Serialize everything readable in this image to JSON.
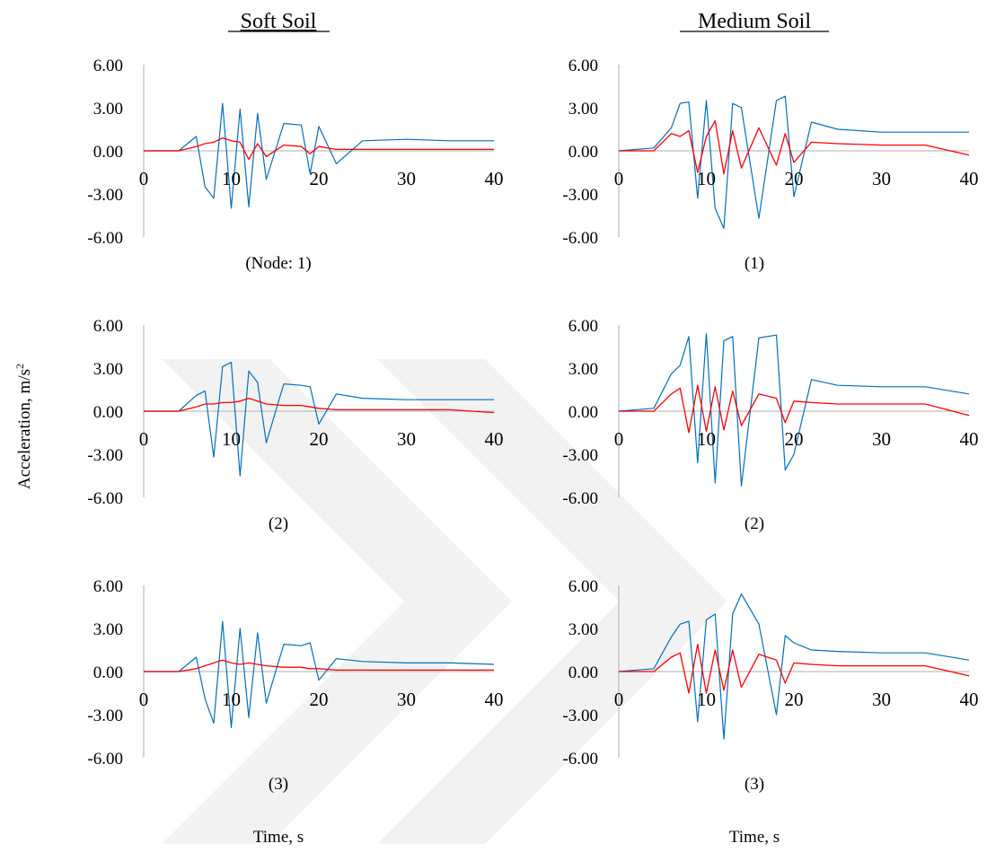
{
  "figure": {
    "y_axis_label": "Acceleration, m/s",
    "y_axis_label_superscript": "2",
    "columns": [
      {
        "heading": "Soft Soil",
        "x_axis_label": "Time, s"
      },
      {
        "heading": "Medium Soil",
        "x_axis_label": "Time, s"
      }
    ],
    "colors": {
      "blue_series": "#0070C0",
      "red_series": "#FF0000",
      "axis": "#BFBFBF",
      "watermark": "#F1F1F1"
    }
  },
  "chart_data": [
    {
      "type": "line",
      "column": "Soft Soil",
      "caption": "(Node: 1)",
      "xlim": [
        0,
        40
      ],
      "ylim": [
        -6,
        6
      ],
      "x_ticks": [
        "0",
        "10",
        "20",
        "30",
        "40"
      ],
      "y_ticks": [
        "6.00",
        "3.00",
        "0.00",
        "-3.00",
        "-6.00"
      ],
      "x": [
        0,
        4,
        6,
        7,
        8,
        9,
        10,
        11,
        12,
        13,
        14,
        16,
        18,
        19,
        20,
        22,
        25,
        30,
        35,
        40
      ],
      "series": [
        {
          "values": [
            0,
            0,
            1.0,
            -2.5,
            -3.3,
            3.3,
            -4.0,
            2.9,
            -3.9,
            2.6,
            -2.0,
            1.9,
            1.8,
            -1.6,
            1.7,
            -0.9,
            0.7,
            0.8,
            0.7,
            0.7
          ]
        },
        {
          "values": [
            0,
            0,
            0.3,
            0.5,
            0.6,
            0.9,
            0.7,
            0.6,
            -0.6,
            0.5,
            -0.4,
            0.4,
            0.3,
            -0.2,
            0.3,
            0.1,
            0.1,
            0.1,
            0.1,
            0.1
          ]
        }
      ]
    },
    {
      "type": "line",
      "column": "Medium Soil",
      "caption": "(1)",
      "xlim": [
        0,
        40
      ],
      "ylim": [
        -6,
        6
      ],
      "x_ticks": [
        "0",
        "10",
        "20",
        "30",
        "40"
      ],
      "y_ticks": [
        "6.00",
        "3.00",
        "0.00",
        "-3.00",
        "-6.00"
      ],
      "x": [
        0,
        4,
        6,
        7,
        8,
        9,
        10,
        11,
        12,
        13,
        14,
        16,
        18,
        19,
        20,
        22,
        25,
        30,
        35,
        40
      ],
      "series": [
        {
          "values": [
            0,
            0.2,
            1.6,
            3.3,
            3.4,
            -3.3,
            3.5,
            -4.0,
            -5.4,
            3.3,
            3.0,
            -4.7,
            3.5,
            3.8,
            -3.2,
            2.0,
            1.5,
            1.3,
            1.3,
            1.3
          ]
        },
        {
          "values": [
            0,
            0,
            1.2,
            1.0,
            1.4,
            -1.5,
            1.0,
            2.1,
            -1.6,
            1.4,
            -1.2,
            1.6,
            -1.0,
            1.2,
            -0.8,
            0.6,
            0.5,
            0.4,
            0.4,
            -0.3
          ]
        }
      ]
    },
    {
      "type": "line",
      "column": "Soft Soil",
      "caption": "(2)",
      "xlim": [
        0,
        40
      ],
      "ylim": [
        -6,
        6
      ],
      "x_ticks": [
        "0",
        "10",
        "20",
        "30",
        "40"
      ],
      "y_ticks": [
        "6.00",
        "3.00",
        "0.00",
        "-3.00",
        "-6.00"
      ],
      "x": [
        0,
        4,
        6,
        7,
        8,
        9,
        10,
        11,
        12,
        13,
        14,
        16,
        18,
        19,
        20,
        22,
        25,
        30,
        35,
        40
      ],
      "series": [
        {
          "values": [
            0,
            0,
            1.1,
            1.4,
            -3.2,
            3.1,
            3.4,
            -4.5,
            2.8,
            2.0,
            -2.2,
            1.9,
            1.8,
            1.7,
            -0.9,
            1.2,
            0.9,
            0.8,
            0.8,
            0.8
          ]
        },
        {
          "values": [
            0,
            0,
            0.3,
            0.5,
            0.5,
            0.6,
            0.6,
            0.7,
            0.9,
            0.7,
            0.5,
            0.4,
            0.4,
            0.3,
            0.2,
            0.1,
            0.1,
            0.1,
            0.1,
            -0.1
          ]
        }
      ]
    },
    {
      "type": "line",
      "column": "Medium Soil",
      "caption": "(2)",
      "xlim": [
        0,
        40
      ],
      "ylim": [
        -6,
        6
      ],
      "x_ticks": [
        "0",
        "10",
        "20",
        "30",
        "40"
      ],
      "y_ticks": [
        "6.00",
        "3.00",
        "0.00",
        "-3.00",
        "-6.00"
      ],
      "x": [
        0,
        4,
        6,
        7,
        8,
        9,
        10,
        11,
        12,
        13,
        14,
        16,
        18,
        19,
        20,
        22,
        25,
        30,
        35,
        40
      ],
      "series": [
        {
          "values": [
            0,
            0.2,
            2.6,
            3.2,
            5.2,
            -3.6,
            5.4,
            -5.0,
            4.9,
            5.2,
            -5.2,
            5.1,
            5.3,
            -4.1,
            -3.0,
            2.2,
            1.8,
            1.7,
            1.7,
            1.2
          ]
        },
        {
          "values": [
            0,
            0,
            1.2,
            1.6,
            -1.5,
            1.8,
            -1.4,
            1.7,
            -1.3,
            1.4,
            -1.0,
            1.2,
            0.9,
            -0.8,
            0.7,
            0.6,
            0.5,
            0.5,
            0.5,
            -0.3
          ]
        }
      ]
    },
    {
      "type": "line",
      "column": "Soft Soil",
      "caption": "(3)",
      "xlim": [
        0,
        40
      ],
      "ylim": [
        -6,
        6
      ],
      "x_ticks": [
        "0",
        "10",
        "20",
        "30",
        "40"
      ],
      "y_ticks": [
        "6.00",
        "3.00",
        "0.00",
        "-3.00",
        "-6.00"
      ],
      "x": [
        0,
        4,
        6,
        7,
        8,
        9,
        10,
        11,
        12,
        13,
        14,
        16,
        18,
        19,
        20,
        22,
        25,
        30,
        35,
        40
      ],
      "series": [
        {
          "values": [
            0,
            0,
            1.0,
            -1.9,
            -3.6,
            3.5,
            -3.9,
            3.0,
            -3.2,
            2.7,
            -2.2,
            1.9,
            1.8,
            2.0,
            -0.6,
            0.9,
            0.7,
            0.6,
            0.6,
            0.5
          ]
        },
        {
          "values": [
            0,
            0,
            0.2,
            0.4,
            0.6,
            0.8,
            0.6,
            0.5,
            0.6,
            0.5,
            0.4,
            0.3,
            0.3,
            0.2,
            0.2,
            0.1,
            0.1,
            0.1,
            0.1,
            0.1
          ]
        }
      ]
    },
    {
      "type": "line",
      "column": "Medium Soil",
      "caption": "(3)",
      "xlim": [
        0,
        40
      ],
      "ylim": [
        -6,
        6
      ],
      "x_ticks": [
        "0",
        "10",
        "20",
        "30",
        "40"
      ],
      "y_ticks": [
        "6.00",
        "3.00",
        "0.00",
        "-3.00",
        "-6.00"
      ],
      "x": [
        0,
        4,
        6,
        7,
        8,
        9,
        10,
        11,
        12,
        13,
        14,
        16,
        18,
        19,
        20,
        22,
        25,
        30,
        35,
        40
      ],
      "series": [
        {
          "values": [
            0,
            0.2,
            2.4,
            3.3,
            3.5,
            -3.5,
            3.6,
            4.0,
            -4.7,
            4.0,
            5.4,
            3.3,
            -3.0,
            2.5,
            2.0,
            1.5,
            1.4,
            1.3,
            1.3,
            0.8
          ]
        },
        {
          "values": [
            0,
            0,
            1.0,
            1.3,
            -1.5,
            1.9,
            -1.5,
            1.5,
            -1.3,
            1.5,
            -1.1,
            1.2,
            0.8,
            -0.8,
            0.6,
            0.5,
            0.4,
            0.4,
            0.4,
            -0.3
          ]
        }
      ]
    }
  ]
}
